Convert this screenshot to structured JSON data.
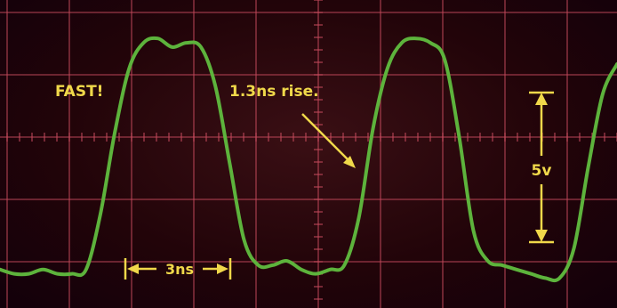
{
  "chart_data": {
    "type": "line",
    "title": "",
    "xlabel": "",
    "ylabel": "",
    "grid": true,
    "x_unit": "ns",
    "y_unit": "V",
    "xlim": [
      0,
      12.9
    ],
    "ylim": [
      -0.6,
      6.6
    ],
    "series": [
      {
        "x": [
          0,
          0.3,
          0.6,
          0.9,
          1.2,
          1.5,
          1.8,
          2.1,
          2.4,
          2.7,
          3.0,
          3.3,
          3.6,
          3.9,
          4.2,
          4.5,
          4.8,
          5.1,
          5.4,
          5.7,
          6.0,
          6.3,
          6.6,
          6.9,
          7.2,
          7.5,
          7.8,
          8.1,
          8.4,
          8.7,
          9.0,
          9.3,
          9.6,
          9.9,
          10.2,
          10.5,
          10.8,
          11.1,
          11.4,
          11.7,
          12.0,
          12.3,
          12.6,
          12.9
        ],
        "y": [
          0.3,
          0.2,
          0.2,
          0.3,
          0.2,
          0.2,
          0.3,
          1.6,
          3.5,
          5.0,
          5.6,
          5.7,
          5.5,
          5.6,
          5.5,
          4.6,
          2.8,
          1.0,
          0.4,
          0.4,
          0.5,
          0.3,
          0.2,
          0.3,
          0.4,
          1.5,
          3.6,
          5.0,
          5.6,
          5.7,
          5.6,
          5.2,
          3.4,
          1.2,
          0.5,
          0.4,
          0.3,
          0.2,
          0.1,
          0.1,
          0.8,
          2.7,
          4.4,
          5.1
        ]
      }
    ],
    "annotations": {
      "fast": "FAST!",
      "rise": "1.3ns rise.",
      "amplitude": "5v",
      "period": "3ns"
    }
  },
  "colors": {
    "trace": "#5db33c",
    "grid": "#c44a5c",
    "annotation": "#f0d84a"
  }
}
